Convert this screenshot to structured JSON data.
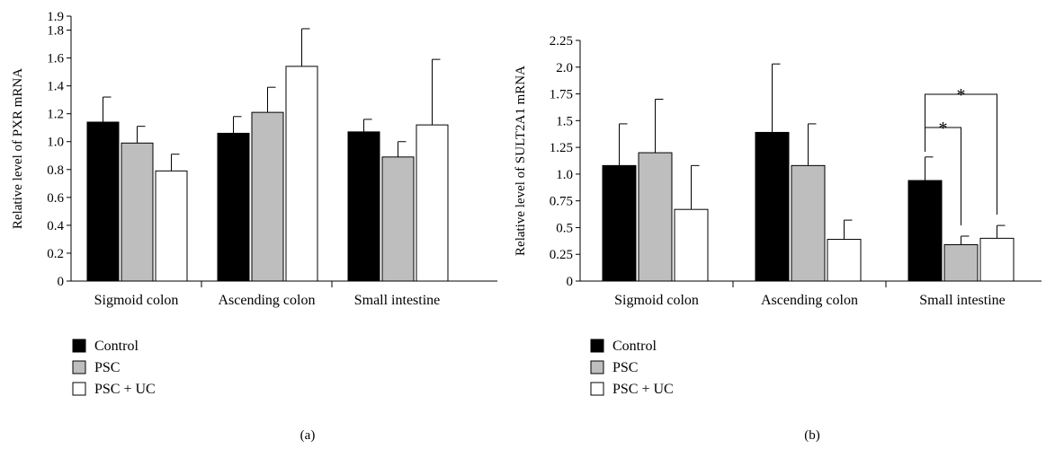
{
  "chart_data": [
    {
      "type": "bar",
      "panel_label": "(a)",
      "ylabel": "Relative level of PXR mRNA",
      "categories": [
        "Sigmoid colon",
        "Ascending colon",
        "Small intestine"
      ],
      "ylim": [
        0,
        1.9
      ],
      "yticks": [
        "0",
        "0.2",
        "0.4",
        "0.6",
        "0.8",
        "1.0",
        "1.2",
        "1.4",
        "1.6",
        "1.8",
        "1.9"
      ],
      "ytick_values": [
        0,
        0.2,
        0.4,
        0.6,
        0.8,
        1.0,
        1.2,
        1.4,
        1.6,
        1.8,
        1.9
      ],
      "series": [
        {
          "name": "Control",
          "color": "#000000",
          "values": [
            1.14,
            1.06,
            1.07
          ],
          "errors": [
            0.18,
            0.12,
            0.09
          ]
        },
        {
          "name": "PSC",
          "color": "#bebebe",
          "values": [
            0.99,
            1.21,
            0.89
          ],
          "errors": [
            0.12,
            0.18,
            0.11
          ]
        },
        {
          "name": "PSC + UC",
          "color": "#ffffff",
          "values": [
            0.79,
            1.54,
            1.12
          ],
          "errors": [
            0.12,
            0.27,
            0.47
          ]
        }
      ],
      "grid": false,
      "legend_position": "bottom-left"
    },
    {
      "type": "bar",
      "panel_label": "(b)",
      "ylabel": "Relative level of SULT2A1 mRNA",
      "categories": [
        "Sigmoid colon",
        "Ascending colon",
        "Small intestine"
      ],
      "ylim": [
        0,
        2.25
      ],
      "yticks": [
        "0",
        "0.25",
        "0.5",
        "0.75",
        "1.0",
        "1.25",
        "1.5",
        "1.75",
        "2.0",
        "2.25"
      ],
      "ytick_values": [
        0,
        0.25,
        0.5,
        0.75,
        1.0,
        1.25,
        1.5,
        1.75,
        2.0,
        2.25
      ],
      "series": [
        {
          "name": "Control",
          "color": "#000000",
          "values": [
            1.08,
            1.39,
            0.94
          ],
          "errors": [
            0.39,
            0.64,
            0.22
          ]
        },
        {
          "name": "PSC",
          "color": "#bebebe",
          "values": [
            1.2,
            1.08,
            0.34
          ],
          "errors": [
            0.5,
            0.39,
            0.08
          ]
        },
        {
          "name": "PSC + UC",
          "color": "#ffffff",
          "values": [
            0.67,
            0.39,
            0.4
          ],
          "errors": [
            0.41,
            0.18,
            0.12
          ]
        }
      ],
      "grid": false,
      "legend_position": "bottom-left",
      "annotations": [
        {
          "text": "*",
          "category": "Small intestine",
          "from_series": "Control",
          "to_series": "PSC"
        },
        {
          "text": "*",
          "category": "Small intestine",
          "from_series": "Control",
          "to_series": "PSC + UC"
        }
      ]
    }
  ]
}
